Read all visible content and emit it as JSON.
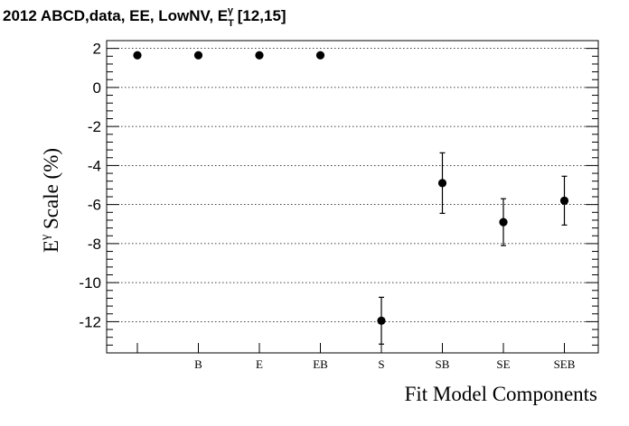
{
  "chart_data": {
    "type": "scatter",
    "title": "2012 ABCD,data, EE, LowNV, E",
    "title_sub": "T",
    "title_sup": "γ",
    "title_tail": " [12,15]",
    "ylabel": "E",
    "ylabel_sup": "γ",
    "ylabel_tail": " Scale (%)",
    "xlabel": "Fit Model Components",
    "categories": [
      "",
      "B",
      "E",
      "EB",
      "S",
      "SB",
      "SE",
      "SEB"
    ],
    "values": [
      1.65,
      1.65,
      1.65,
      1.65,
      -11.95,
      -4.9,
      -6.9,
      -5.8
    ],
    "errors": [
      0,
      0,
      0,
      0,
      1.2,
      1.55,
      1.2,
      1.25
    ],
    "ylim": [
      -13.6,
      2.4
    ],
    "yticks": [
      2,
      0,
      -2,
      -4,
      -6,
      -8,
      -10,
      -12
    ],
    "ytick_labels": [
      "2",
      "0",
      "-2",
      "-4",
      "-6",
      "-8",
      "-10",
      "-12"
    ],
    "grid": "horizontal dotted",
    "legend": "none",
    "marker_color": "#000000"
  }
}
